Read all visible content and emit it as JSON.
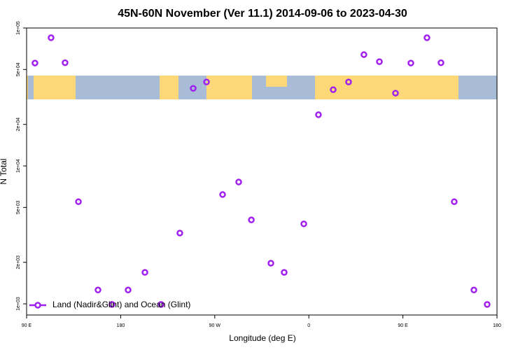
{
  "chart_data": {
    "type": "scatter",
    "title": "45N-60N November (Ver 11.1)   2014-09-06 to 2023-04-30",
    "x_label": "Longitude (deg E)",
    "y_label": "N Total",
    "log_y": true,
    "xlim": [
      90,
      540
    ],
    "ylim": [
      830,
      100000
    ],
    "xticks": [
      {
        "value": 90,
        "label": "90 E"
      },
      180,
      {
        "value": 270,
        "label": "90 W"
      },
      {
        "value": 360,
        "label": "0"
      },
      {
        "value": 450,
        "label": "90 E"
      },
      {
        "value": 540,
        "label": "180"
      }
    ],
    "yticks": [
      {
        "value": 1000,
        "label": "1e+03"
      },
      {
        "value": 2000,
        "label": "2e+03"
      },
      {
        "value": 5000,
        "label": "5e+03"
      },
      {
        "value": 10000,
        "label": "1e+04"
      },
      {
        "value": 20000,
        "label": "2e+04"
      },
      {
        "value": 50000,
        "label": "5e+04"
      },
      {
        "value": 100000,
        "label": "1e+05"
      }
    ],
    "legend": "bottom-left",
    "series": [
      {
        "name": "Land (Nadir&Glint) and Ocean (Glint)",
        "color": "#a020f0",
        "x": [
          98,
          113.4,
          126.8,
          139.6,
          158.3,
          171.7,
          187.1,
          203.2,
          218.6,
          236.6,
          249.4,
          262.1,
          277.5,
          292.9,
          305,
          323.7,
          336.4,
          355.2,
          369.2,
          383.3,
          398,
          412.7,
          427.5,
          442.9,
          457.6,
          473,
          486.4,
          499.1,
          517.9,
          530.6
        ],
        "values": [
          55700,
          85000,
          56000,
          5500,
          1260,
          990,
          1260,
          1690,
          990,
          3260,
          36500,
          40600,
          6200,
          7640,
          4060,
          1970,
          1690,
          3800,
          23500,
          35700,
          40600,
          64100,
          57000,
          33700,
          55700,
          85000,
          56000,
          5500,
          1260,
          990
        ]
      }
    ]
  }
}
